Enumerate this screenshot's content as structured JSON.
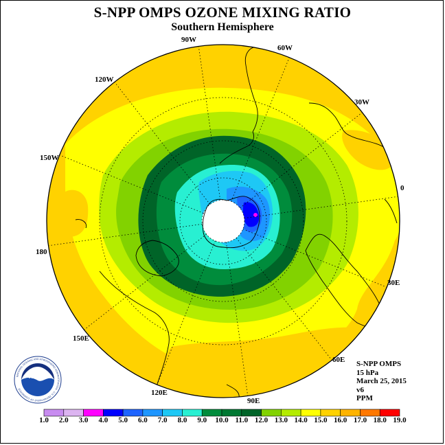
{
  "title": "S-NPP OMPS OZONE MIXING RATIO",
  "subtitle": "Southern Hemisphere",
  "longitude_labels": [
    "90W",
    "60W",
    "30W",
    "0",
    "30E",
    "60E",
    "90E",
    "120E",
    "150E",
    "180",
    "150W",
    "120W"
  ],
  "info": {
    "instrument": "S-NPP OMPS",
    "level": "15 hPa",
    "date": "March 25, 2015",
    "version": "v6",
    "units": "PPM"
  },
  "logo": {
    "text": "NOAA",
    "ring_text": "NATIONAL OCEANIC AND ATMOSPHERIC ADMINISTRATION · U.S. DEPARTMENT OF COMMERCE"
  },
  "colorbar": {
    "labels": [
      "1.0",
      "2.0",
      "3.0",
      "4.0",
      "5.0",
      "6.0",
      "7.0",
      "8.0",
      "9.0",
      "10.0",
      "11.0",
      "12.0",
      "13.0",
      "14.0",
      "15.0",
      "16.0",
      "17.0",
      "18.0",
      "19.0"
    ],
    "colors": [
      "#c88cf0",
      "#dcb4f0",
      "#ff00ff",
      "#0000ff",
      "#1e64ff",
      "#1e96ff",
      "#1ec8f5",
      "#28f0d2",
      "#008c3c",
      "#007832",
      "#006428",
      "#82d200",
      "#b4ec00",
      "#ffff00",
      "#ffd200",
      "#ffb400",
      "#ff7800",
      "#ff0000",
      "#8c5a3c"
    ]
  },
  "colors": {
    "background": "#ffffff",
    "polar_cap": "#ffffff"
  }
}
